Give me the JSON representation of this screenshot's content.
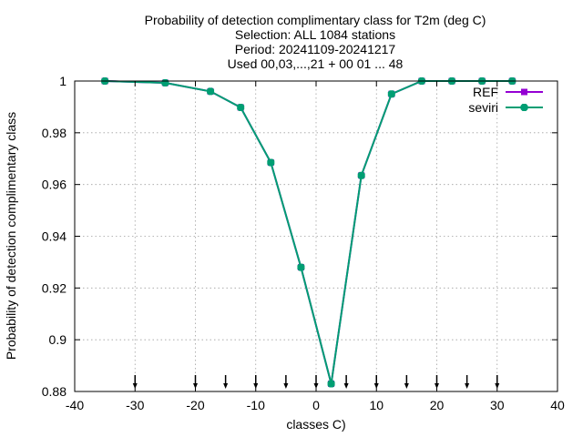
{
  "chart_data": {
    "type": "line",
    "title_lines": [
      "Probability of detection complimentary class  for T2m (deg C)",
      "Selection: ALL   1084 stations",
      "Period: 20241109-20241217",
      "Used 00,03,...,21 + 00 01 ... 48"
    ],
    "xlabel": "classes C)",
    "ylabel": "Probability of detection complimentary class",
    "xlim": [
      -40,
      40
    ],
    "ylim": [
      0.88,
      1.0
    ],
    "x_ticks": [
      -40,
      -30,
      -20,
      -10,
      0,
      10,
      20,
      30,
      40
    ],
    "y_ticks": [
      0.88,
      0.9,
      0.92,
      0.94,
      0.96,
      0.98,
      1.0
    ],
    "y_tick_labels": [
      "0.88",
      "0.9",
      "0.92",
      "0.94",
      "0.96",
      "0.98",
      "1"
    ],
    "grid": true,
    "legend_position": "top-right",
    "class_markers_x": [
      -30,
      -20,
      -15,
      -10,
      -5,
      0,
      5,
      10,
      15,
      20,
      25,
      30
    ],
    "series": [
      {
        "name": "REF",
        "color": "#9400d3",
        "x": [
          -35,
          -25,
          -17.5,
          -12.5,
          -7.5,
          -2.5,
          2.5,
          7.5,
          12.5,
          17.5,
          22.5,
          27.5,
          32.5
        ],
        "values": [
          1.0,
          0.9993,
          0.996,
          0.9898,
          0.9685,
          0.928,
          0.883,
          0.9635,
          0.995,
          1.0,
          1.0,
          1.0,
          1.0
        ]
      },
      {
        "name": "seviri",
        "color": "#009e73",
        "x": [
          -35,
          -25,
          -17.5,
          -12.5,
          -7.5,
          -2.5,
          2.5,
          7.5,
          12.5,
          17.5,
          22.5,
          27.5,
          32.5
        ],
        "values": [
          1.0,
          0.9993,
          0.996,
          0.9898,
          0.9685,
          0.928,
          0.883,
          0.9635,
          0.995,
          1.0,
          1.0,
          1.0,
          1.0
        ]
      }
    ]
  }
}
